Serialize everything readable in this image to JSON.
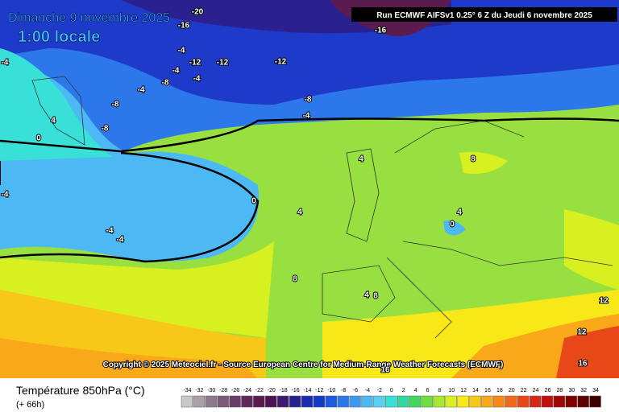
{
  "header": {
    "date": "Dimanche 9 novembre 2025",
    "time": "1:00 locale",
    "run": "Run ECMWF AIFSv1 0.25° 6 Z du Jeudi 6 novembre 2025"
  },
  "copyright": "Copyright © 2025 Meteociel.fr - Source European Centre for Medium-Range Weather Forecasts (ECMWF)",
  "footer": {
    "title": "Température 850hPa (°C)",
    "lead": "(+ 66h)"
  },
  "contour_labels": [
    -20,
    -16,
    -16,
    -4,
    -4,
    -12,
    -12,
    -12,
    -8,
    -4,
    -4,
    -8,
    -8,
    -8,
    -4,
    -4,
    4,
    0,
    -4,
    -4,
    -4,
    0,
    4,
    8,
    4,
    8,
    4,
    8,
    4,
    0,
    12,
    12,
    16,
    16
  ],
  "legend": {
    "ticks": [
      -34,
      -32,
      -30,
      -28,
      -26,
      -24,
      -22,
      -20,
      -18,
      -16,
      -14,
      -12,
      -10,
      -8,
      -6,
      -4,
      -2,
      0,
      2,
      4,
      6,
      8,
      10,
      12,
      14,
      16,
      18,
      20,
      22,
      24,
      26,
      28,
      30,
      32,
      34
    ],
    "colors": [
      "#c8c8c8",
      "#a9a0a9",
      "#8c7a8c",
      "#7a5a7a",
      "#6a3c6a",
      "#5e2a5e",
      "#5a1c4e",
      "#4a1456",
      "#3c1a6e",
      "#2a2090",
      "#1c2aae",
      "#1438c8",
      "#1e5ae0",
      "#2c78ea",
      "#3c98f0",
      "#4cb8f4",
      "#5ad0f0",
      "#38e0d8",
      "#30d8a0",
      "#40d860",
      "#70e040",
      "#a8e830",
      "#d8f020",
      "#f8e818",
      "#f8c818",
      "#f8a818",
      "#f88818",
      "#f06818",
      "#e84818",
      "#d82818",
      "#c01010",
      "#a00808",
      "#800000",
      "#600000",
      "#400000"
    ]
  }
}
